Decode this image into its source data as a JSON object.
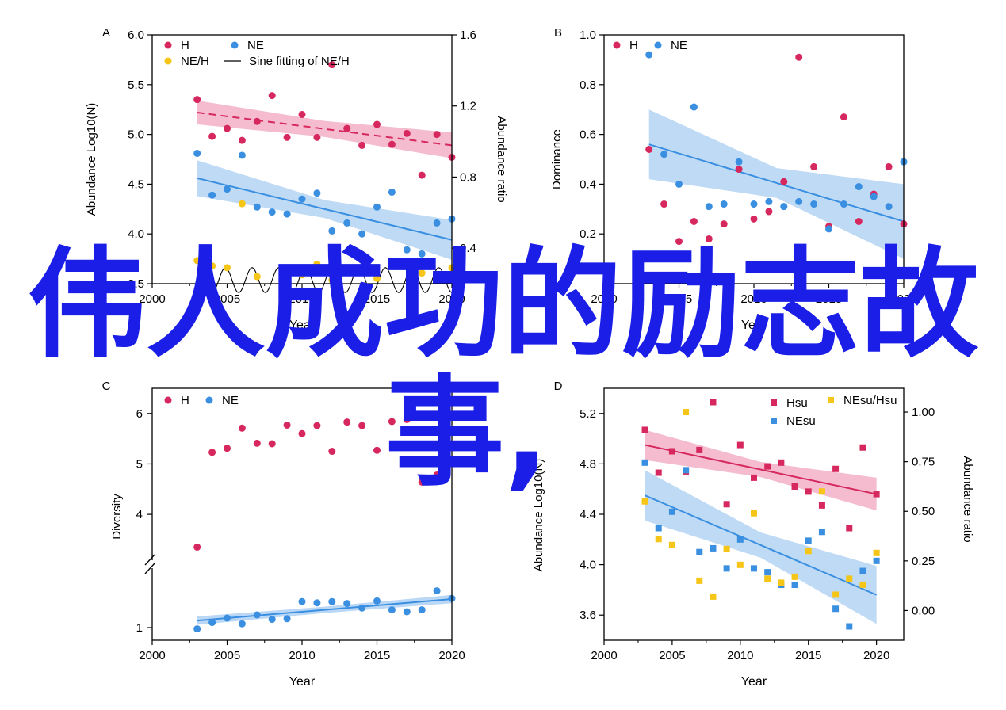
{
  "overlay_text": {
    "line1": "伟人成功的励志故",
    "line2": "事,"
  },
  "colors": {
    "H": "#d6285e",
    "NE": "#3a8fe0",
    "ratio": "#f5c518",
    "H_band": "#f2a5bf",
    "NE_band": "#a9cdf2",
    "overlay": "#1a1ee6"
  },
  "chart_data": [
    {
      "panel": "A",
      "type": "scatter",
      "xlabel": "Year",
      "ylabel": "Abundance Log10(N)",
      "ylabel_right": "Abundance ratio",
      "xlim": [
        2000,
        2020
      ],
      "ylim": [
        3.5,
        6.0
      ],
      "ylim_right": [
        0.2,
        1.6
      ],
      "xticks": [
        "2000",
        "2005",
        "2010",
        "2015",
        "2020"
      ],
      "yticks": [
        "3.5",
        "4.0",
        "4.5",
        "5.0",
        "5.5",
        "6.0"
      ],
      "yticks_right": [
        "0.4",
        "0.8",
        "1.2",
        "1.6"
      ],
      "legend": [
        "H",
        "NE",
        "NE/H",
        "Sine fitting of NE/H"
      ],
      "series": [
        {
          "name": "H",
          "x": [
            2003,
            2004,
            2005,
            2006,
            2007,
            2008,
            2009,
            2010,
            2011,
            2012,
            2013,
            2014,
            2015,
            2016,
            2017,
            2018,
            2019,
            2020
          ],
          "y": [
            5.35,
            4.98,
            5.06,
            4.94,
            5.13,
            5.39,
            4.97,
            5.2,
            4.97,
            5.7,
            5.06,
            4.89,
            5.1,
            4.9,
            5.01,
            4.59,
            5.0,
            4.77
          ]
        },
        {
          "name": "NE",
          "x": [
            2003,
            2004,
            2005,
            2006,
            2007,
            2008,
            2009,
            2010,
            2011,
            2012,
            2013,
            2014,
            2015,
            2016,
            2017,
            2018,
            2019,
            2020
          ],
          "y": [
            4.81,
            4.39,
            4.45,
            4.79,
            4.27,
            4.22,
            4.2,
            4.35,
            4.41,
            4.03,
            4.11,
            4.0,
            4.27,
            4.42,
            3.84,
            3.8,
            4.11,
            4.15
          ]
        },
        {
          "name": "NE/H",
          "x": [
            2003,
            2004,
            2005,
            2006,
            2007,
            2008,
            2009,
            2010,
            2011,
            2012,
            2013,
            2014,
            2015,
            2016,
            2017,
            2018,
            2019,
            2020
          ],
          "y": [
            0.33,
            0.3,
            0.29,
            0.65,
            0.24,
            0.15,
            0.26,
            0.25,
            0.31,
            0.22,
            0.19,
            0.17,
            0.23,
            0.32,
            0.14,
            0.26,
            0.22,
            0.29
          ]
        }
      ],
      "trend_H": [
        [
          2003,
          5.22
        ],
        [
          2020,
          4.89
        ]
      ],
      "trend_NE": [
        [
          2003,
          4.56
        ],
        [
          2020,
          3.94
        ]
      ]
    },
    {
      "panel": "B",
      "type": "scatter",
      "xlabel": "Year",
      "ylabel": "Dominance",
      "xlim": [
        2000,
        2020
      ],
      "ylim": [
        0.0,
        1.0
      ],
      "xticks": [
        "2000",
        "2005",
        "2010",
        "2015",
        "2020"
      ],
      "yticks": [
        "0.2",
        "0.4",
        "0.6",
        "0.8",
        "1.0"
      ],
      "legend": [
        "H",
        "NE"
      ],
      "series": [
        {
          "name": "H",
          "x": [
            2003,
            2004,
            2005,
            2006,
            2007,
            2008,
            2009,
            2010,
            2011,
            2012,
            2013,
            2014,
            2015,
            2016,
            2017,
            2018,
            2019,
            2020
          ],
          "y": [
            0.54,
            0.32,
            0.17,
            0.25,
            0.18,
            0.24,
            0.46,
            0.26,
            0.29,
            0.41,
            0.91,
            0.47,
            0.23,
            0.67,
            0.25,
            0.36,
            0.47,
            0.24
          ]
        },
        {
          "name": "NE",
          "x": [
            2003,
            2004,
            2005,
            2006,
            2007,
            2008,
            2009,
            2010,
            2011,
            2012,
            2013,
            2014,
            2015,
            2016,
            2017,
            2018,
            2019,
            2020
          ],
          "y": [
            0.92,
            0.52,
            0.4,
            0.71,
            0.31,
            0.32,
            0.49,
            0.32,
            0.33,
            0.31,
            0.33,
            0.32,
            0.22,
            0.32,
            0.39,
            0.35,
            0.31,
            0.49
          ]
        }
      ],
      "trend_NE": [
        [
          2003,
          0.56
        ],
        [
          2020,
          0.25
        ]
      ]
    },
    {
      "panel": "C",
      "type": "scatter",
      "xlabel": "Year",
      "ylabel": "Diversity",
      "xlim": [
        2000,
        2020
      ],
      "xticks": [
        "2000",
        "2005",
        "2010",
        "2015",
        "2020"
      ],
      "yticks": [
        "1",
        "4",
        "5",
        "6"
      ],
      "legend": [
        "H",
        "NE"
      ],
      "series": [
        {
          "name": "H",
          "x": [
            2003,
            2004,
            2005,
            2006,
            2007,
            2008,
            2009,
            2010,
            2011,
            2012,
            2013,
            2014,
            2015,
            2016,
            2017,
            2018,
            2019
          ],
          "y": [
            3.35,
            5.23,
            5.31,
            5.71,
            5.41,
            5.4,
            5.77,
            5.6,
            5.76,
            5.25,
            5.83,
            5.76,
            5.27,
            5.84,
            5.88,
            4.64,
            4.78
          ]
        },
        {
          "name": "NE",
          "x": [
            2003,
            2004,
            2005,
            2006,
            2007,
            2008,
            2009,
            2010,
            2011,
            2012,
            2013,
            2014,
            2015,
            2016,
            2017,
            2018,
            2019,
            2020
          ],
          "y": [
            0.98,
            1.08,
            1.15,
            1.06,
            1.2,
            1.13,
            1.14,
            1.41,
            1.39,
            1.41,
            1.38,
            1.31,
            1.42,
            1.28,
            1.25,
            1.28,
            1.58,
            1.46
          ]
        }
      ],
      "trend_NE": [
        [
          2003,
          1.11
        ],
        [
          2020,
          1.45
        ]
      ]
    },
    {
      "panel": "D",
      "type": "scatter",
      "xlabel": "Year",
      "ylabel": "Abundance Log10(N)",
      "ylabel_right": "Abundance ratio",
      "xlim": [
        2000,
        2022
      ],
      "ylim": [
        3.4,
        5.4
      ],
      "ylim_right": [
        -0.15,
        1.12
      ],
      "xticks": [
        "2000",
        "2005",
        "2010",
        "2015",
        "2020"
      ],
      "yticks": [
        "3.6",
        "4.0",
        "4.4",
        "4.8",
        "5.2"
      ],
      "yticks_right": [
        "0.00",
        "0.25",
        "0.50",
        "0.75",
        "1.00"
      ],
      "legend": [
        "Hsu",
        "NEsu",
        "NEsu/Hsu"
      ],
      "series": [
        {
          "name": "Hsu",
          "x": [
            2003,
            2004,
            2005,
            2006,
            2007,
            2008,
            2009,
            2010,
            2011,
            2012,
            2013,
            2014,
            2015,
            2016,
            2017,
            2018,
            2019,
            2020
          ],
          "y": [
            5.07,
            4.73,
            4.9,
            4.74,
            4.91,
            5.29,
            4.48,
            4.95,
            4.69,
            4.78,
            4.81,
            4.62,
            4.58,
            4.47,
            4.76,
            4.29,
            4.93,
            4.56
          ]
        },
        {
          "name": "NEsu",
          "x": [
            2003,
            2004,
            2005,
            2006,
            2007,
            2008,
            2009,
            2010,
            2011,
            2012,
            2013,
            2014,
            2015,
            2016,
            2017,
            2018,
            2019,
            2020
          ],
          "y": [
            4.81,
            4.29,
            4.42,
            4.75,
            4.1,
            4.13,
            3.97,
            4.2,
            3.97,
            3.94,
            3.84,
            3.84,
            4.19,
            4.26,
            3.65,
            3.51,
            3.95,
            4.03
          ]
        },
        {
          "name": "NEsu/Hsu",
          "x": [
            2003,
            2004,
            2005,
            2006,
            2007,
            2008,
            2009,
            2010,
            2011,
            2012,
            2013,
            2014,
            2015,
            2016,
            2017,
            2018,
            2019,
            2020
          ],
          "y": [
            0.55,
            0.36,
            0.33,
            1.0,
            0.15,
            0.07,
            0.31,
            0.23,
            0.49,
            0.16,
            0.14,
            0.17,
            0.3,
            0.6,
            0.08,
            0.16,
            0.13,
            0.29
          ]
        }
      ],
      "trend_H": [
        [
          2003,
          4.95
        ],
        [
          2020,
          4.56
        ]
      ],
      "trend_NE": [
        [
          2003,
          4.55
        ],
        [
          2020,
          3.76
        ]
      ]
    }
  ]
}
